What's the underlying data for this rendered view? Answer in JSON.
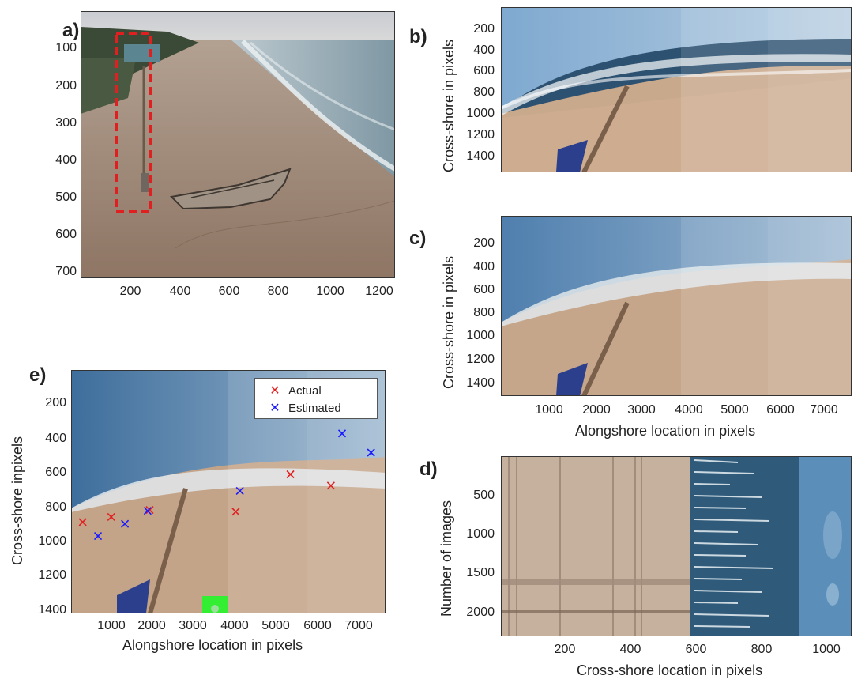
{
  "panels": {
    "a": {
      "letter": "a)",
      "yticks": [
        "100",
        "200",
        "300",
        "400",
        "500",
        "600",
        "700"
      ],
      "xticks": [
        "200",
        "400",
        "600",
        "800",
        "1000",
        "1200"
      ]
    },
    "b": {
      "letter": "b)",
      "ylabel": "Cross-shore  in pixels",
      "yticks": [
        "200",
        "400",
        "600",
        "800",
        "1000",
        "1200",
        "1400"
      ]
    },
    "c": {
      "letter": "c)",
      "ylabel": "Cross-shore  in pixels",
      "yticks": [
        "200",
        "400",
        "600",
        "800",
        "1000",
        "1200",
        "1400"
      ],
      "xticks": [
        "1000",
        "2000",
        "3000",
        "4000",
        "5000",
        "6000",
        "7000"
      ],
      "xlabel": "Alongshore location in pixels"
    },
    "d": {
      "letter": "d)",
      "ylabel": "Number of images",
      "yticks": [
        "500",
        "1000",
        "1500",
        "2000"
      ],
      "xticks": [
        "200",
        "400",
        "600",
        "800",
        "1000"
      ],
      "xlabel": "Cross-shore location in pixels"
    },
    "e": {
      "letter": "e)",
      "ylabel": "Cross-shore inpixels",
      "yticks": [
        "200",
        "400",
        "600",
        "800",
        "1000",
        "1200",
        "1400"
      ],
      "xticks": [
        "1000",
        "2000",
        "3000",
        "4000",
        "5000",
        "6000",
        "7000"
      ],
      "xlabel": "Alongshore location in pixels",
      "legend": {
        "actual": "Actual",
        "estimated": "Estimated"
      }
    }
  },
  "colors": {
    "actual": "#e02020",
    "estimated": "#1a1aff",
    "roi": "#e02020",
    "marker": "#33ee33"
  },
  "chart_data": [
    {
      "type": "scatter",
      "panel": "e",
      "xlabel": "Alongshore location in pixels",
      "ylabel": "Cross-shore inpixels",
      "xlim": [
        0,
        7600
      ],
      "ylim": [
        1430,
        30
      ],
      "y_reversed": true,
      "series": [
        {
          "name": "Actual",
          "x": [
            280,
            970,
            1900,
            3980,
            5300,
            6280
          ],
          "y": [
            905,
            875,
            835,
            845,
            630,
            695
          ]
        },
        {
          "name": "Estimated",
          "x": [
            650,
            1300,
            1850,
            4080,
            6550,
            7250
          ],
          "y": [
            985,
            915,
            840,
            725,
            395,
            505
          ]
        }
      ]
    }
  ]
}
